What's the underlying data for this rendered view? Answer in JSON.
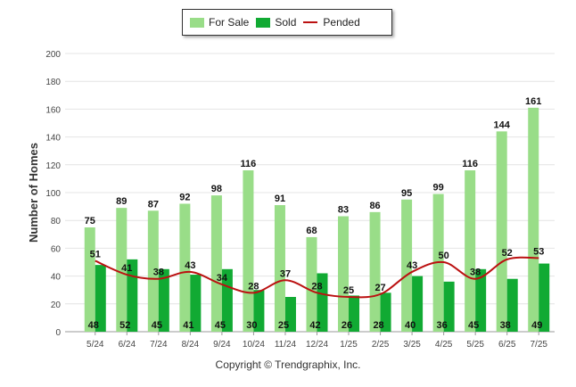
{
  "chart_data": {
    "type": "bar",
    "ylabel": "Number of Homes",
    "ylim": [
      0,
      200
    ],
    "yticks": [
      0,
      20,
      40,
      60,
      80,
      100,
      120,
      140,
      160,
      180,
      200
    ],
    "categories": [
      "5/24",
      "6/24",
      "7/24",
      "8/24",
      "9/24",
      "10/24",
      "11/24",
      "12/24",
      "1/25",
      "2/25",
      "3/25",
      "4/25",
      "5/25",
      "6/25",
      "7/25"
    ],
    "series": [
      {
        "name": "For Sale",
        "type": "bar",
        "color": "#99dd88",
        "values": [
          75,
          89,
          87,
          92,
          98,
          116,
          91,
          68,
          83,
          86,
          95,
          99,
          116,
          144,
          161
        ]
      },
      {
        "name": "Sold",
        "type": "bar",
        "color": "#11aa33",
        "values": [
          48,
          52,
          45,
          41,
          45,
          30,
          25,
          42,
          26,
          28,
          40,
          36,
          45,
          38,
          49
        ]
      },
      {
        "name": "Pended",
        "type": "line",
        "color": "#bb1111",
        "values": [
          51,
          41,
          38,
          43,
          34,
          28,
          37,
          28,
          25,
          27,
          43,
          50,
          38,
          52,
          53
        ]
      }
    ],
    "legend_position": "top-center",
    "grid": true
  },
  "legend": {
    "for_sale": "For Sale",
    "sold": "Sold",
    "pended": "Pended"
  },
  "footer": {
    "copyright": "Copyright © Trendgraphix, Inc."
  }
}
